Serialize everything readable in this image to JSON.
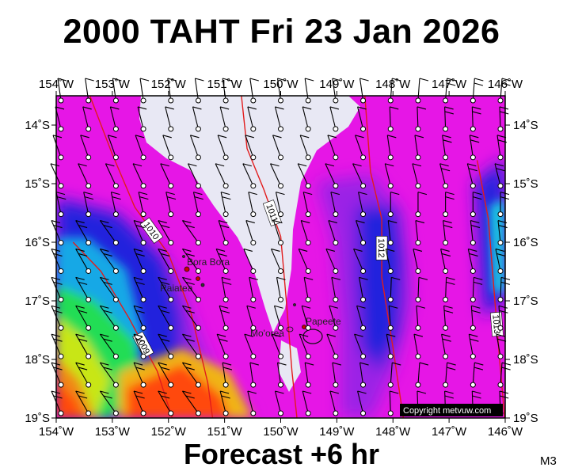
{
  "title": "2000 TAHT Fri 23 Jan 2026",
  "subtitle": "Forecast +6 hr",
  "model_code": "M3",
  "copyright": "Copyright metvuw.com",
  "map": {
    "lon_range": [
      -154,
      -146
    ],
    "lat_range": [
      -19,
      -13.5
    ],
    "lon_ticks": [
      "154˚W",
      "153˚W",
      "152˚W",
      "151˚W",
      "150˚W",
      "149˚W",
      "148˚W",
      "147˚W",
      "146˚W"
    ],
    "lat_ticks": [
      "14˚S",
      "15˚S",
      "16˚S",
      "17˚S",
      "18˚S",
      "19˚S"
    ],
    "places": [
      "Bora Bora",
      "Raiatea",
      "Mo'orea",
      "Papeete"
    ],
    "isobars": [
      {
        "label": "1009",
        "points": [
          [
            -153.7,
            -16.0
          ],
          [
            -153.2,
            -16.5
          ],
          [
            -152.7,
            -17.3
          ],
          [
            -152.2,
            -18.2
          ],
          [
            -151.9,
            -19.1
          ]
        ]
      },
      {
        "label": "1010",
        "points": [
          [
            -153.4,
            -13.5
          ],
          [
            -153.0,
            -14.5
          ],
          [
            -152.6,
            -15.4
          ],
          [
            -152.0,
            -16.2
          ],
          [
            -151.6,
            -17.2
          ],
          [
            -151.3,
            -18.4
          ],
          [
            -151.2,
            -19.1
          ]
        ]
      },
      {
        "label": "1011",
        "points": [
          [
            -150.7,
            -13.5
          ],
          [
            -150.6,
            -14.4
          ],
          [
            -150.3,
            -15.1
          ],
          [
            -150.0,
            -15.9
          ],
          [
            -149.9,
            -17.0
          ],
          [
            -149.8,
            -18.2
          ],
          [
            -149.7,
            -19.1
          ]
        ]
      },
      {
        "label": "1012",
        "points": [
          [
            -148.5,
            -13.5
          ],
          [
            -148.4,
            -14.8
          ],
          [
            -148.2,
            -15.6
          ],
          [
            -148.2,
            -16.6
          ],
          [
            -148.0,
            -17.8
          ],
          [
            -147.8,
            -19.1
          ]
        ]
      },
      {
        "label": "1013",
        "points": [
          [
            -146.5,
            -14.6
          ],
          [
            -146.3,
            -15.6
          ],
          [
            -146.2,
            -16.8
          ],
          [
            -146.1,
            -18.0
          ],
          [
            -146.0,
            -19.1
          ]
        ]
      }
    ]
  }
}
